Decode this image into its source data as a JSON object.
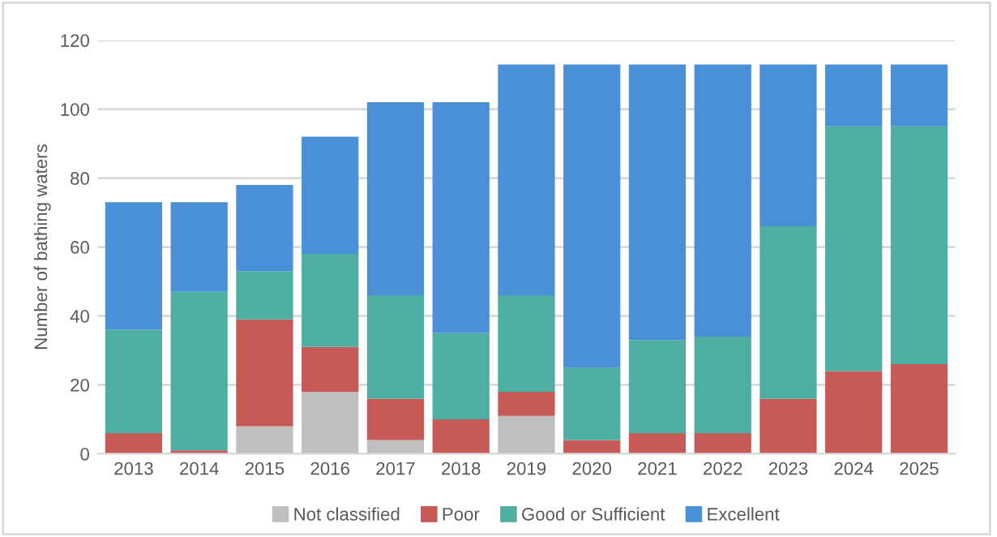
{
  "chart_data": {
    "type": "bar",
    "stacked": true,
    "ylabel": "Number of bathing waters",
    "categories": [
      "2013",
      "2014",
      "2015",
      "2016",
      "2017",
      "2018",
      "2019",
      "2020",
      "2021",
      "2022",
      "2023",
      "2024",
      "2025"
    ],
    "series": [
      {
        "name": "Not classified",
        "color": "#bfbfbf",
        "values": [
          0,
          0,
          8,
          18,
          4,
          0,
          11,
          0,
          0,
          0,
          0,
          0,
          0
        ]
      },
      {
        "name": "Poor",
        "color": "#c55a57",
        "values": [
          6,
          1,
          31,
          13,
          12,
          10,
          7,
          4,
          6,
          6,
          16,
          24,
          26
        ]
      },
      {
        "name": "Good or Sufficient",
        "color": "#4eaea2",
        "values": [
          30,
          46,
          14,
          27,
          30,
          25,
          28,
          21,
          27,
          28,
          50,
          71,
          69
        ]
      },
      {
        "name": "Excellent",
        "color": "#4a90d6",
        "values": [
          37,
          26,
          25,
          34,
          56,
          67,
          67,
          88,
          80,
          79,
          47,
          18,
          18
        ]
      }
    ],
    "ylim": [
      0,
      120
    ],
    "yticks": [
      0,
      20,
      40,
      60,
      80,
      100,
      120
    ],
    "grid": "y",
    "legend": "bottom"
  }
}
